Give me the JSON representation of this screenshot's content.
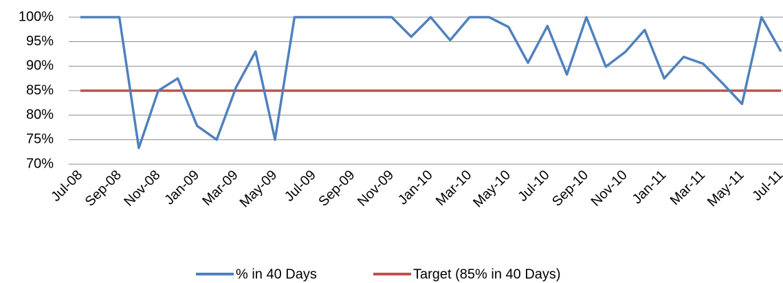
{
  "chart_data": {
    "type": "line",
    "categories": [
      "Jul-08",
      null,
      "Sep-08",
      null,
      "Nov-08",
      null,
      "Jan-09",
      null,
      "Mar-09",
      null,
      "May-09",
      null,
      "Jul-09",
      null,
      "Sep-09",
      null,
      "Nov-09",
      null,
      "Jan-10",
      null,
      "Mar-10",
      null,
      "May-10",
      null,
      "Jul-10",
      null,
      "Sep-10",
      null,
      "Nov-10",
      null,
      "Jan-11",
      null,
      "Mar-11",
      null,
      "May-11",
      null,
      "Jul-11"
    ],
    "series": [
      {
        "name": "% in 40 Days",
        "color": "#4f81bd",
        "values": [
          100,
          100,
          100,
          73.3,
          85,
          87.5,
          77.8,
          75,
          85.7,
          93,
          75,
          100,
          100,
          100,
          100,
          100,
          100,
          96,
          100,
          95.3,
          100,
          100,
          98,
          90.7,
          98.2,
          88.3,
          100,
          89.9,
          92.9,
          97.4,
          87.5,
          91.9,
          90.5,
          86.5,
          82.3,
          100,
          93
        ]
      },
      {
        "name": "Target (85% in 40 Days)",
        "color": "#c0504d",
        "values": [
          85,
          85,
          85,
          85,
          85,
          85,
          85,
          85,
          85,
          85,
          85,
          85,
          85,
          85,
          85,
          85,
          85,
          85,
          85,
          85,
          85,
          85,
          85,
          85,
          85,
          85,
          85,
          85,
          85,
          85,
          85,
          85,
          85,
          85,
          85,
          85,
          85
        ]
      }
    ],
    "ylim": [
      70,
      100
    ],
    "yticks": [
      {
        "value": 70,
        "label": "70%"
      },
      {
        "value": 75,
        "label": "75%"
      },
      {
        "value": 80,
        "label": "80%"
      },
      {
        "value": 85,
        "label": "85%"
      },
      {
        "value": 90,
        "label": "90%"
      },
      {
        "value": 95,
        "label": "95%"
      },
      {
        "value": 100,
        "label": "100%"
      }
    ],
    "grid": true,
    "legend": "bottom"
  }
}
